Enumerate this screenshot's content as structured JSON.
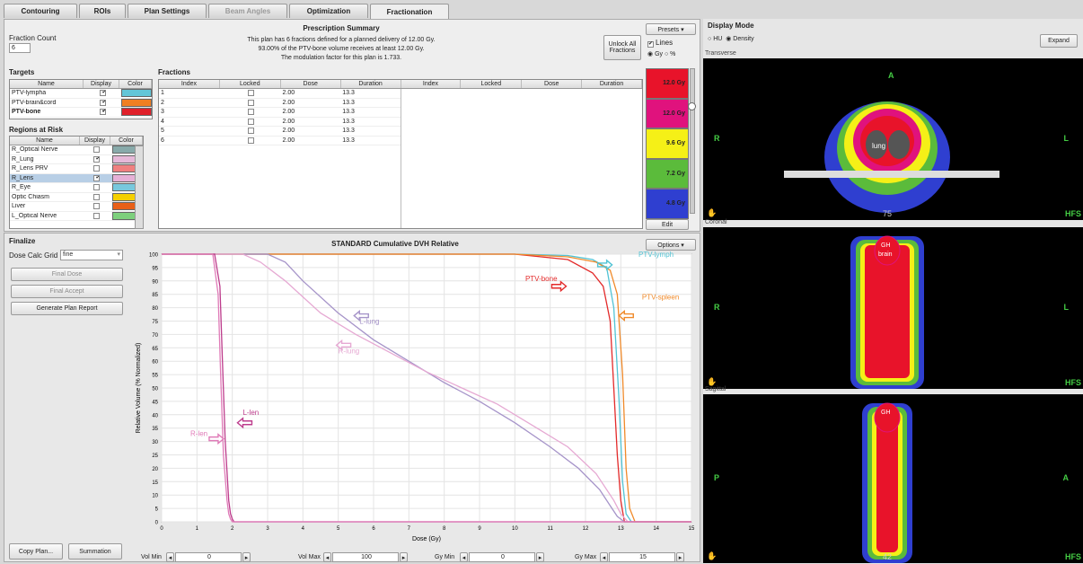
{
  "tabs": [
    "Contouring",
    "ROIs",
    "Plan Settings",
    "Beam Angles",
    "Optimization",
    "Fractionation"
  ],
  "fraction_count": {
    "label": "Fraction Count",
    "value": "6"
  },
  "prescription": {
    "title": "Prescription Summary",
    "line1": "This plan has 6 fractions defined for a planned delivery of 12.00 Gy.",
    "line2": "93.00% of the PTV-bone volume receives at least 12.00 Gy.",
    "line3": "The modulation factor for this plan is 1.733."
  },
  "unlock_label": "Unlock All Fractions",
  "presets_label": "Presets ▾",
  "lines_label": "Lines",
  "units": {
    "gy": "Gy",
    "pct": "%"
  },
  "colorscale": [
    {
      "label": "12.0 Gy",
      "color": "#e8132a"
    },
    {
      "label": "12.0 Gy",
      "color": "#e0127d"
    },
    {
      "label": "9.6 Gy",
      "color": "#f5f017"
    },
    {
      "label": "7.2 Gy",
      "color": "#5bbb3b"
    },
    {
      "label": "4.8 Gy",
      "color": "#2f3fd0"
    }
  ],
  "edit_label": "Edit",
  "targets": {
    "title": "Targets",
    "cols": [
      "Name",
      "Display",
      "Color"
    ],
    "rows": [
      {
        "name": "PTV-lympha",
        "color": "#63c6d8"
      },
      {
        "name": "PTV-brain&cord",
        "color": "#f07f22"
      },
      {
        "name": "PTV-bone",
        "color": "#e0202a"
      }
    ]
  },
  "roi": {
    "title": "Regions at Risk",
    "cols": [
      "Name",
      "Display",
      "Color"
    ],
    "rows": [
      {
        "name": "R_Optical Nerve",
        "checked": false,
        "color": "#8aa"
      },
      {
        "name": "R_Lung",
        "checked": true,
        "color": "#e6b8d8"
      },
      {
        "name": "R_Lens PRV",
        "checked": false,
        "color": "#f08080"
      },
      {
        "name": "R_Lens",
        "checked": true,
        "color": "#e6b0d6"
      },
      {
        "name": "R_Eye",
        "checked": false,
        "color": "#78c8dd"
      },
      {
        "name": "Optic Chiasm",
        "checked": false,
        "color": "#f5d000"
      },
      {
        "name": "Liver",
        "checked": false,
        "color": "#e86018"
      },
      {
        "name": "L_Optical Nerve",
        "checked": false,
        "color": "#7dd07d"
      }
    ]
  },
  "fractions": {
    "title": "Fractions",
    "cols": [
      "Index",
      "Locked",
      "Dose",
      "Duration"
    ],
    "cols2": [
      "Index",
      "Locked",
      "Dose",
      "Duration"
    ],
    "rows": [
      {
        "index": "1",
        "dose": "2.00",
        "duration": "13.3"
      },
      {
        "index": "2",
        "dose": "2.00",
        "duration": "13.3"
      },
      {
        "index": "3",
        "dose": "2.00",
        "duration": "13.3"
      },
      {
        "index": "4",
        "dose": "2.00",
        "duration": "13.3"
      },
      {
        "index": "5",
        "dose": "2.00",
        "duration": "13.3"
      },
      {
        "index": "6",
        "dose": "2.00",
        "duration": "13.3"
      }
    ]
  },
  "finalize": {
    "title": "Finalize",
    "grid_label": "Dose Calc Grid",
    "grid_value": "fine",
    "final_dose": "Final Dose",
    "final_accept": "Final Accept",
    "generate": "Generate Plan Report",
    "copy": "Copy Plan...",
    "summation": "Summation"
  },
  "dvh_options": "Options ▾",
  "chart_data": {
    "type": "line",
    "title": "STANDARD Cumulative DVH Relative",
    "xlabel": "Dose (Gy)",
    "ylabel": "Relative Volume (% Normalized)",
    "xlim": [
      0,
      15
    ],
    "ylim": [
      0,
      100
    ],
    "xticks": [
      0,
      1,
      2,
      3,
      4,
      5,
      6,
      7,
      8,
      9,
      10,
      11,
      12,
      13,
      14,
      15
    ],
    "yticks": [
      0,
      5,
      10,
      15,
      20,
      25,
      30,
      35,
      40,
      45,
      50,
      55,
      60,
      65,
      70,
      75,
      80,
      85,
      90,
      95,
      100
    ],
    "grid": true,
    "series": [
      {
        "name": "PTV-lymph",
        "color": "#52c3d4",
        "x": [
          0,
          10,
          11.5,
          12.2,
          12.6,
          12.8,
          12.95,
          13.05,
          13.15,
          13.3,
          15
        ],
        "y": [
          100,
          100,
          99.5,
          98,
          95,
          80,
          45,
          15,
          3,
          0,
          0
        ]
      },
      {
        "name": "PTV-bone",
        "color": "#e32a2a",
        "x": [
          0,
          10,
          11.5,
          12.2,
          12.5,
          12.7,
          12.8,
          12.9,
          13.0,
          13.1,
          15
        ],
        "y": [
          100,
          100,
          98,
          93,
          88,
          75,
          50,
          25,
          8,
          0,
          0
        ]
      },
      {
        "name": "PTV-spleen",
        "color": "#f08a2a",
        "x": [
          0,
          10,
          11.5,
          12.3,
          12.7,
          12.9,
          13.05,
          13.15,
          13.25,
          13.4,
          15
        ],
        "y": [
          100,
          100,
          99,
          97,
          94,
          85,
          55,
          20,
          5,
          0,
          0
        ]
      },
      {
        "name": "L-lung",
        "color": "#a694c9",
        "x": [
          0,
          3,
          3.5,
          4,
          5,
          6,
          7,
          8,
          9,
          10,
          11,
          11.8,
          12.4,
          12.7,
          12.9,
          13.1,
          15
        ],
        "y": [
          100,
          100,
          97,
          90,
          78,
          68,
          60,
          52,
          45,
          37,
          28,
          20,
          12,
          6,
          2,
          0,
          0
        ]
      },
      {
        "name": "R-lung",
        "color": "#e6a9d3",
        "x": [
          0,
          2.3,
          2.8,
          3.5,
          4.5,
          5.5,
          6.5,
          7.5,
          8.5,
          9.5,
          10.5,
          11.5,
          12.3,
          12.8,
          13.0,
          13.2,
          15
        ],
        "y": [
          100,
          100,
          97,
          90,
          78,
          70,
          63,
          56,
          50,
          44,
          36,
          28,
          18,
          8,
          3,
          0,
          0
        ]
      },
      {
        "name": "L-len",
        "color": "#bd3c8c",
        "x": [
          0,
          1.5,
          1.65,
          1.72,
          1.8,
          1.9,
          1.95,
          2.0,
          2.05,
          15
        ],
        "y": [
          100,
          100,
          88,
          60,
          30,
          8,
          3,
          1,
          0,
          0
        ]
      },
      {
        "name": "R-len",
        "color": "#e07bb8",
        "x": [
          0,
          1.45,
          1.6,
          1.67,
          1.75,
          1.85,
          1.9,
          1.95,
          2.0,
          15
        ],
        "y": [
          100,
          100,
          85,
          55,
          25,
          8,
          3,
          1,
          0,
          0
        ]
      }
    ],
    "annotations": [
      {
        "text": "PTV-lymph",
        "color": "#52c3d4"
      },
      {
        "text": "PTV-bone",
        "color": "#e32a2a"
      },
      {
        "text": "PTV-spleen",
        "color": "#f08a2a"
      },
      {
        "text": "L-lung",
        "color": "#a694c9"
      },
      {
        "text": "R-lung",
        "color": "#e6a9d3"
      },
      {
        "text": "L-len",
        "color": "#bd3c8c"
      },
      {
        "text": "R-len",
        "color": "#e07bb8"
      }
    ]
  },
  "sliders": {
    "vol_min_label": "Vol Min",
    "vol_min": "0",
    "vol_max_label": "Vol Max",
    "vol_max": "100",
    "gy_min_label": "Gy Min",
    "gy_min": "0",
    "gy_max_label": "Gy Max",
    "gy_max": "15"
  },
  "display": {
    "title": "Display Mode",
    "hu": "HU",
    "density": "Density",
    "expand": "Expand"
  },
  "views": [
    {
      "name": "Transverse",
      "top": "A",
      "left": "R",
      "right": "L",
      "corner": "HFS",
      "slice": "75"
    },
    {
      "name": "Coronal",
      "left": "R",
      "right": "L",
      "corner": "HFS"
    },
    {
      "name": "Sagittal",
      "left": "P",
      "right": "A",
      "corner": "HFS",
      "slice": "42"
    }
  ],
  "anatomy": {
    "brain": "brain",
    "lung": "lung",
    "gh": "GH"
  }
}
